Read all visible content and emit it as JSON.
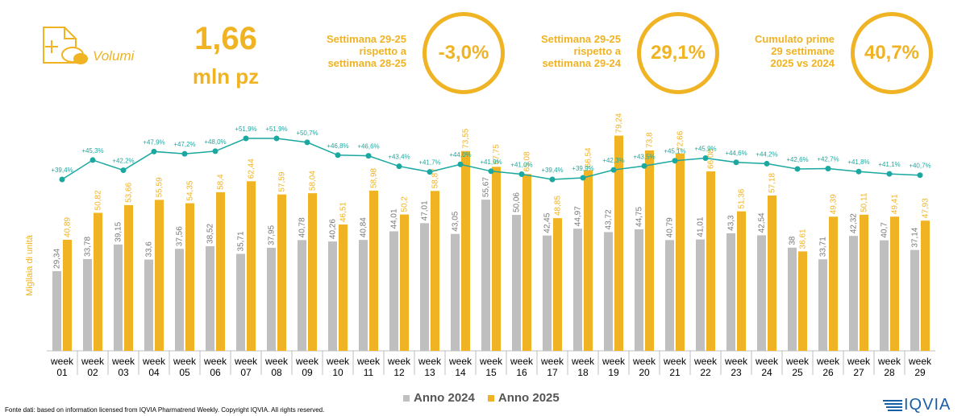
{
  "kpi": {
    "label": "Volumi",
    "value": "1,66",
    "unit": "mln pz",
    "icon": "pharma-box-icon"
  },
  "comparisons": [
    {
      "label_lines": [
        "Settimana 29-25",
        "rispetto a",
        "settimana 28-25"
      ],
      "value": "-3,0%"
    },
    {
      "label_lines": [
        "Settimana 29-25",
        "rispetto a",
        "settimana 29-24"
      ],
      "value": "29,1%"
    },
    {
      "label_lines": [
        "Cumulato prime",
        "29 settimane",
        "2025 vs 2024"
      ],
      "value": "40,7%"
    }
  ],
  "colors": {
    "accent": "#f0b323",
    "series_2024": "#bfbfbf",
    "series_2025": "#f0b323",
    "line": "#1aa8a0",
    "logo": "#1a5ea8"
  },
  "chart_data": {
    "type": "bar",
    "categories": [
      "week 01",
      "week 02",
      "week 03",
      "week 04",
      "week 05",
      "week 06",
      "week 07",
      "week 08",
      "week 09",
      "week 10",
      "week 11",
      "week 12",
      "week 13",
      "week 14",
      "week 15",
      "week 16",
      "week 17",
      "week 18",
      "week 19",
      "week 20",
      "week 21",
      "week 22",
      "week 23",
      "week 24",
      "week 25",
      "week 26",
      "week 27",
      "week 28",
      "week 29"
    ],
    "category_lines": [
      [
        "week",
        "01"
      ],
      [
        "week",
        "02"
      ],
      [
        "week",
        "03"
      ],
      [
        "week",
        "04"
      ],
      [
        "week",
        "05"
      ],
      [
        "week",
        "06"
      ],
      [
        "week",
        "07"
      ],
      [
        "week",
        "08"
      ],
      [
        "week",
        "09"
      ],
      [
        "week",
        "10"
      ],
      [
        "week",
        "11"
      ],
      [
        "week",
        "12"
      ],
      [
        "week",
        "13"
      ],
      [
        "week",
        "14"
      ],
      [
        "week",
        "15"
      ],
      [
        "week",
        "16"
      ],
      [
        "week",
        "17"
      ],
      [
        "week",
        "18"
      ],
      [
        "week",
        "19"
      ],
      [
        "week",
        "20"
      ],
      [
        "week",
        "21"
      ],
      [
        "week",
        "22"
      ],
      [
        "week",
        "23"
      ],
      [
        "week",
        "24"
      ],
      [
        "week",
        "25"
      ],
      [
        "week",
        "26"
      ],
      [
        "week",
        "27"
      ],
      [
        "week",
        "28"
      ],
      [
        "week",
        "29"
      ]
    ],
    "series": [
      {
        "name": "Anno 2024",
        "values": [
          29.34,
          33.78,
          39.15,
          33.6,
          37.56,
          38.52,
          35.71,
          37.95,
          40.78,
          40.26,
          40.84,
          44.01,
          47.01,
          43.05,
          55.67,
          50.06,
          42.45,
          44.97,
          43.72,
          44.75,
          40.79,
          41.01,
          43.3,
          42.54,
          38,
          33.71,
          42.32,
          40.7,
          37.14
        ],
        "labels": [
          "29,34",
          "33,78",
          "39,15",
          "33,6",
          "37,56",
          "38,52",
          "35,71",
          "37,95",
          "40,78",
          "40,26",
          "40,84",
          "44,01",
          "47,01",
          "43,05",
          "55,67",
          "50,06",
          "42,45",
          "44,97",
          "43,72",
          "44,75",
          "40,79",
          "41,01",
          "43,3",
          "42,54",
          "38",
          "33,71",
          "42,32",
          "40,7",
          "37,14"
        ]
      },
      {
        "name": "Anno 2025",
        "values": [
          40.89,
          50.82,
          53.66,
          55.59,
          54.35,
          58.4,
          62.44,
          57.59,
          58.04,
          46.51,
          58.98,
          50.2,
          58.87,
          73.55,
          67.75,
          65.08,
          48.85,
          66.54,
          79.24,
          73.8,
          72.66,
          66.08,
          51.36,
          57.18,
          36.61,
          49.39,
          50.11,
          49.41,
          47.93
        ],
        "labels": [
          "40,89",
          "50,82",
          "53,66",
          "55,59",
          "54,35",
          "58,4",
          "62,44",
          "57,59",
          "58,04",
          "46,51",
          "58,98",
          "50,2",
          "58,87",
          "73,55",
          "67,75",
          "65,08",
          "48,85",
          "66,54",
          "79,24",
          "73,8",
          "72,66",
          "66,08",
          "51,36",
          "57,18",
          "36,61",
          "49,39",
          "50,11",
          "49,41",
          "47,93"
        ]
      }
    ],
    "growth_line": {
      "values": [
        39.4,
        45.3,
        42.2,
        47.9,
        47.2,
        48.0,
        51.9,
        51.9,
        50.7,
        46.8,
        46.6,
        43.4,
        41.7,
        44.0,
        41.9,
        41.0,
        39.4,
        39.9,
        42.3,
        43.5,
        45.1,
        45.9,
        44.6,
        44.2,
        42.6,
        42.7,
        41.8,
        41.1,
        40.7
      ],
      "labels": [
        "+39,4%",
        "+45,3%",
        "+42,2%",
        "+47,9%",
        "+47,2%",
        "+48,0%",
        "+51,9%",
        "+51,9%",
        "+50,7%",
        "+46,8%",
        "+46,6%",
        "+43,4%",
        "+41,7%",
        "+44,0%",
        "+41,9%",
        "+41,0%",
        "+39,4%",
        "+39,9%",
        "+42,3%",
        "+43,5%",
        "+45,1%",
        "+45,9%",
        "+44,6%",
        "+44,2%",
        "+42,6%",
        "+42,7%",
        "+41,8%",
        "+41,1%",
        "+40,7%"
      ]
    },
    "ylabel": "Migliaia di unità",
    "ylim": [
      0,
      85
    ],
    "grid": false,
    "legend": "bottom"
  },
  "source": "Fonte dati: based on information licensed from IQVIA Pharmatrend Weekly. Copyright IQVIA. All rights reserved.",
  "logo": {
    "text": "IQVIA"
  }
}
